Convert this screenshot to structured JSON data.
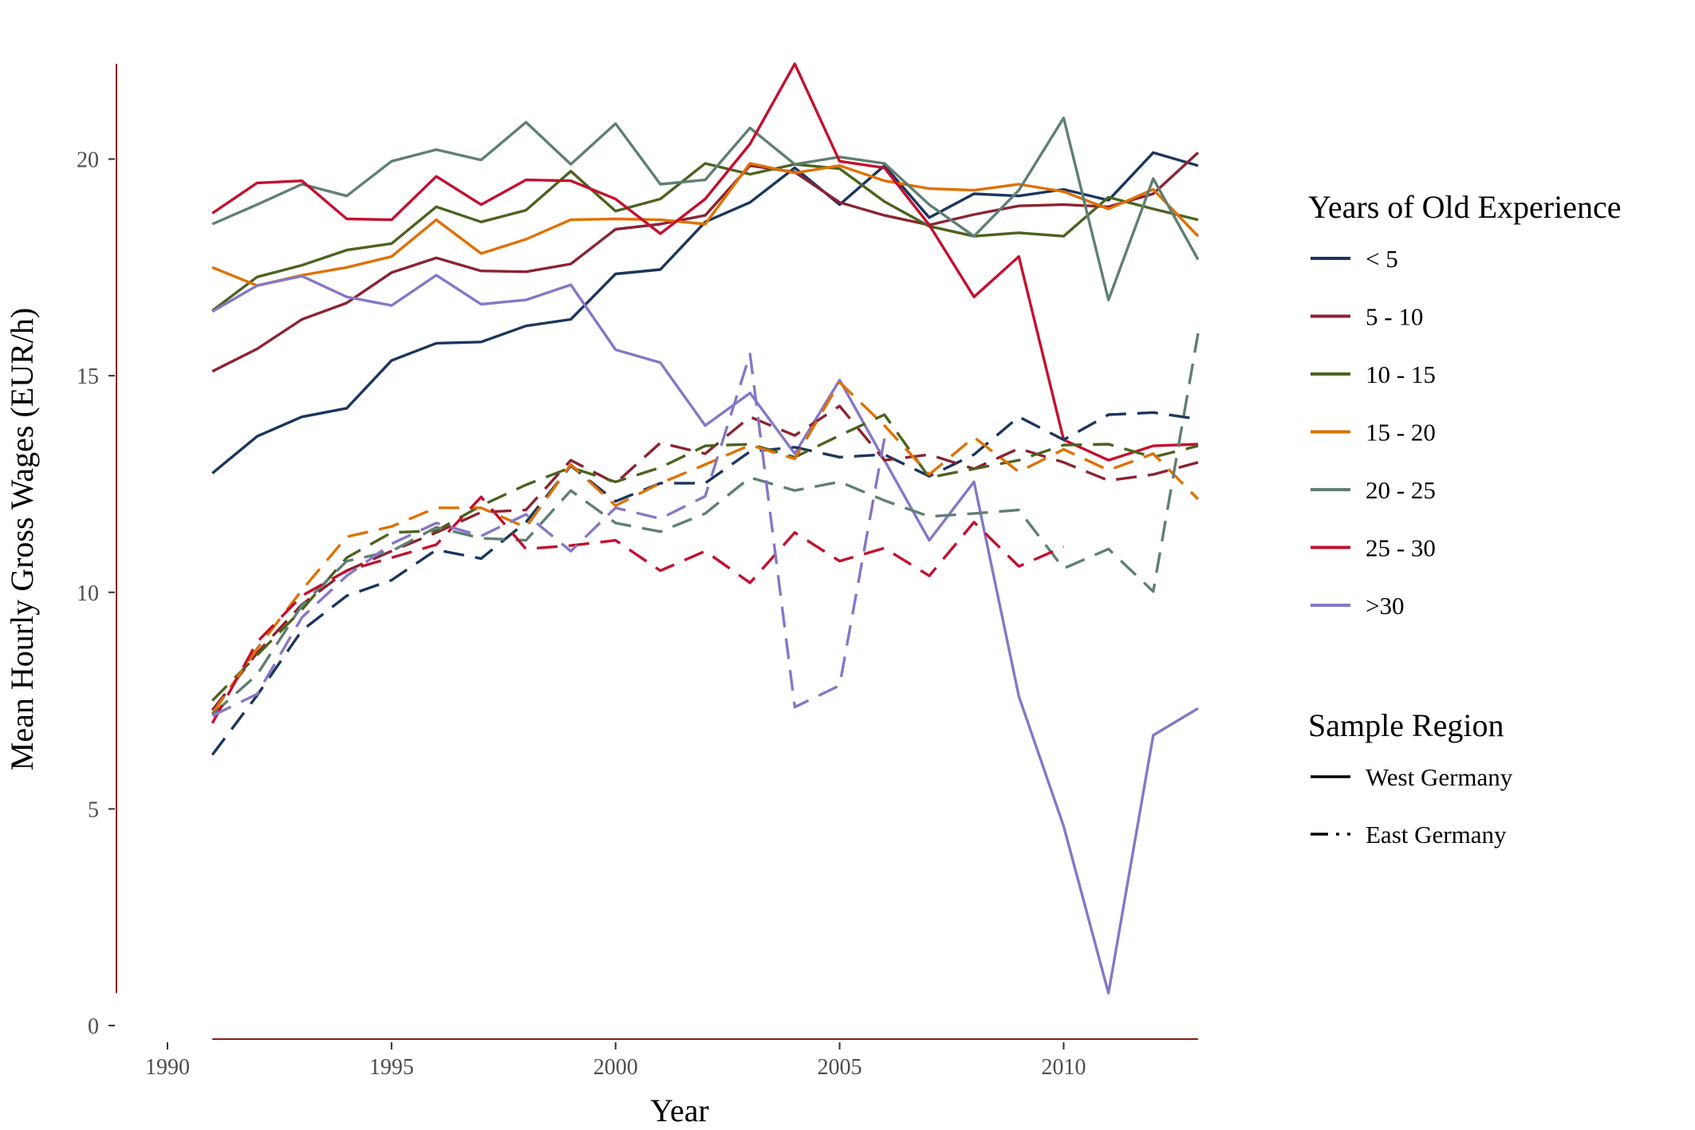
{
  "chart_data": {
    "type": "line",
    "xlabel": "Year",
    "ylabel": "Mean Hourly Gross Wages (EUR/h)",
    "xlim": [
      1990,
      2013
    ],
    "ylim": [
      0,
      22.2
    ],
    "xticks": [
      1990,
      1995,
      2000,
      2005,
      2010
    ],
    "yticks": [
      0,
      5,
      10,
      15,
      20
    ],
    "grid": false,
    "axis_color": "#8B1A1A",
    "x": [
      1991,
      1992,
      1993,
      1994,
      1995,
      1996,
      1997,
      1998,
      1999,
      2000,
      2001,
      2002,
      2003,
      2004,
      2005,
      2006,
      2007,
      2008,
      2009,
      2010,
      2011,
      2012,
      2013
    ],
    "legend_color": {
      "title": "Years of Old Experience",
      "entries": [
        {
          "label": "< 5",
          "color": "#1B365D"
        },
        {
          "label": "5 - 10",
          "color": "#8B2332"
        },
        {
          "label": "10 - 15",
          "color": "#4B6320"
        },
        {
          "label": "15 - 20",
          "color": "#E07000"
        },
        {
          "label": "20 - 25",
          "color": "#5F7F73"
        },
        {
          "label": "25 - 30",
          "color": "#C3102F"
        },
        {
          "label": ">30",
          "color": "#8677C6"
        }
      ]
    },
    "legend_linetype": {
      "title": "Sample Region",
      "entries": [
        {
          "label": "West Germany",
          "dash": "solid"
        },
        {
          "label": "East Germany",
          "dash": "dashed"
        }
      ]
    },
    "legend_placement": "right",
    "series": [
      {
        "group": "< 5",
        "region": "West Germany",
        "color": "#1B365D",
        "dash": "solid",
        "values": [
          12.75,
          13.6,
          14.05,
          14.25,
          15.35,
          15.75,
          15.78,
          16.15,
          16.3,
          17.35,
          17.45,
          18.55,
          19.0,
          19.8,
          18.95,
          19.85,
          18.65,
          19.2,
          19.15,
          19.3,
          19.05,
          20.15,
          19.85
        ]
      },
      {
        "group": "5 - 10",
        "region": "West Germany",
        "color": "#8B2332",
        "dash": "solid",
        "values": [
          15.1,
          15.62,
          16.3,
          16.68,
          17.38,
          17.72,
          17.42,
          17.4,
          17.58,
          18.38,
          18.5,
          18.7,
          19.85,
          19.7,
          19.0,
          18.7,
          18.48,
          18.72,
          18.92,
          18.95,
          18.9,
          19.2,
          20.15
        ]
      },
      {
        "group": "10 - 15",
        "region": "West Germany",
        "color": "#4B6320",
        "dash": "solid",
        "values": [
          16.5,
          17.28,
          17.55,
          17.9,
          18.05,
          18.9,
          18.55,
          18.82,
          19.72,
          18.8,
          19.08,
          19.9,
          19.65,
          19.88,
          19.78,
          19.02,
          18.45,
          18.22,
          18.3,
          18.22,
          19.12,
          18.85,
          18.6
        ]
      },
      {
        "group": "15 - 20",
        "region": "West Germany",
        "color": "#E07000",
        "dash": "solid",
        "values": [
          17.5,
          17.08,
          17.32,
          17.5,
          17.75,
          18.6,
          17.82,
          18.15,
          18.6,
          18.62,
          18.6,
          18.5,
          19.9,
          19.68,
          19.85,
          19.5,
          19.32,
          19.28,
          19.42,
          19.25,
          18.85,
          19.3,
          18.22
        ]
      },
      {
        "group": "20 - 25",
        "region": "West Germany",
        "color": "#5F7F73",
        "dash": "solid",
        "values": [
          18.5,
          18.95,
          19.42,
          19.15,
          19.95,
          20.22,
          19.98,
          20.85,
          19.88,
          20.82,
          19.42,
          19.52,
          20.72,
          19.88,
          20.05,
          19.9,
          18.95,
          18.22,
          19.28,
          20.95,
          16.75,
          19.55,
          17.68
        ]
      },
      {
        "group": "25 - 30",
        "region": "West Germany",
        "color": "#C3102F",
        "dash": "solid",
        "values": [
          18.75,
          19.45,
          19.5,
          18.62,
          18.6,
          19.6,
          18.95,
          19.52,
          19.5,
          19.08,
          18.28,
          19.08,
          20.35,
          22.2,
          19.95,
          19.8,
          18.48,
          16.82,
          17.75,
          13.52,
          13.05,
          13.38,
          13.42
        ]
      },
      {
        "group": ">30",
        "region": "West Germany",
        "color": "#8677C6",
        "dash": "solid",
        "values": [
          16.48,
          17.08,
          17.3,
          16.82,
          16.62,
          17.32,
          16.65,
          16.75,
          17.1,
          15.6,
          15.3,
          13.85,
          14.6,
          13.2,
          14.9,
          13.05,
          11.2,
          12.55,
          7.6,
          4.6,
          0.75,
          6.7,
          7.32
        ]
      },
      {
        "group": "< 5",
        "region": "East Germany",
        "color": "#1B365D",
        "dash": "dashed",
        "values": [
          6.25,
          7.62,
          9.12,
          9.92,
          10.28,
          10.98,
          10.78,
          11.62,
          12.92,
          12.1,
          12.52,
          12.52,
          13.25,
          13.35,
          13.12,
          13.18,
          12.68,
          13.18,
          14.05,
          13.52,
          14.1,
          14.15,
          14.0
        ]
      },
      {
        "group": "5 - 10",
        "region": "East Germany",
        "color": "#8B2332",
        "dash": "dashed",
        "values": [
          7.28,
          8.6,
          9.72,
          10.5,
          10.95,
          11.38,
          11.85,
          11.9,
          13.05,
          12.52,
          13.45,
          13.2,
          14.05,
          13.62,
          14.3,
          13.05,
          13.18,
          12.85,
          13.32,
          13.0,
          12.58,
          12.72,
          13.0
        ]
      },
      {
        "group": "10 - 15",
        "region": "East Germany",
        "color": "#4B6320",
        "dash": "dashed",
        "values": [
          7.5,
          8.55,
          9.6,
          10.8,
          11.38,
          11.42,
          12.0,
          12.48,
          12.88,
          12.55,
          12.88,
          13.38,
          13.42,
          13.12,
          13.62,
          14.1,
          12.65,
          12.85,
          13.05,
          13.4,
          13.42,
          13.12,
          13.38
        ]
      },
      {
        "group": "15 - 20",
        "region": "East Germany",
        "color": "#E07000",
        "dash": "dashed",
        "values": [
          7.2,
          8.7,
          10.05,
          11.28,
          11.52,
          11.95,
          11.95,
          11.5,
          12.95,
          12.0,
          12.52,
          12.95,
          13.4,
          13.08,
          14.85,
          13.85,
          12.72,
          13.58,
          12.78,
          13.3,
          12.82,
          13.2,
          12.15
        ]
      },
      {
        "group": "20 - 25",
        "region": "East Germany",
        "color": "#5F7F73",
        "dash": "dashed",
        "values": [
          7.18,
          8.1,
          9.7,
          10.72,
          10.95,
          11.5,
          11.25,
          11.2,
          12.35,
          11.6,
          11.4,
          11.82,
          12.65,
          12.35,
          12.55,
          12.12,
          11.75,
          11.82,
          11.9,
          10.55,
          11.0,
          10.02,
          15.98
        ]
      },
      {
        "group": "25 - 30",
        "region": "East Germany",
        "color": "#C3102F",
        "dash": "dashed",
        "values": [
          6.98,
          8.85,
          9.92,
          10.5,
          10.8,
          11.1,
          12.2,
          11.0,
          11.08,
          11.2,
          10.5,
          10.95,
          10.22,
          11.38,
          10.72,
          11.02,
          10.38,
          11.62,
          10.6,
          11.05,
          null,
          null,
          null
        ]
      },
      {
        "group": ">30",
        "region": "East Germany",
        "color": "#8677C6",
        "dash": "dashed",
        "values": [
          7.15,
          7.65,
          9.42,
          10.38,
          11.12,
          11.6,
          11.3,
          11.8,
          10.95,
          11.95,
          11.7,
          12.22,
          15.5,
          7.35,
          7.85,
          13.55,
          null,
          null,
          null,
          null,
          null,
          null,
          null
        ]
      }
    ]
  }
}
